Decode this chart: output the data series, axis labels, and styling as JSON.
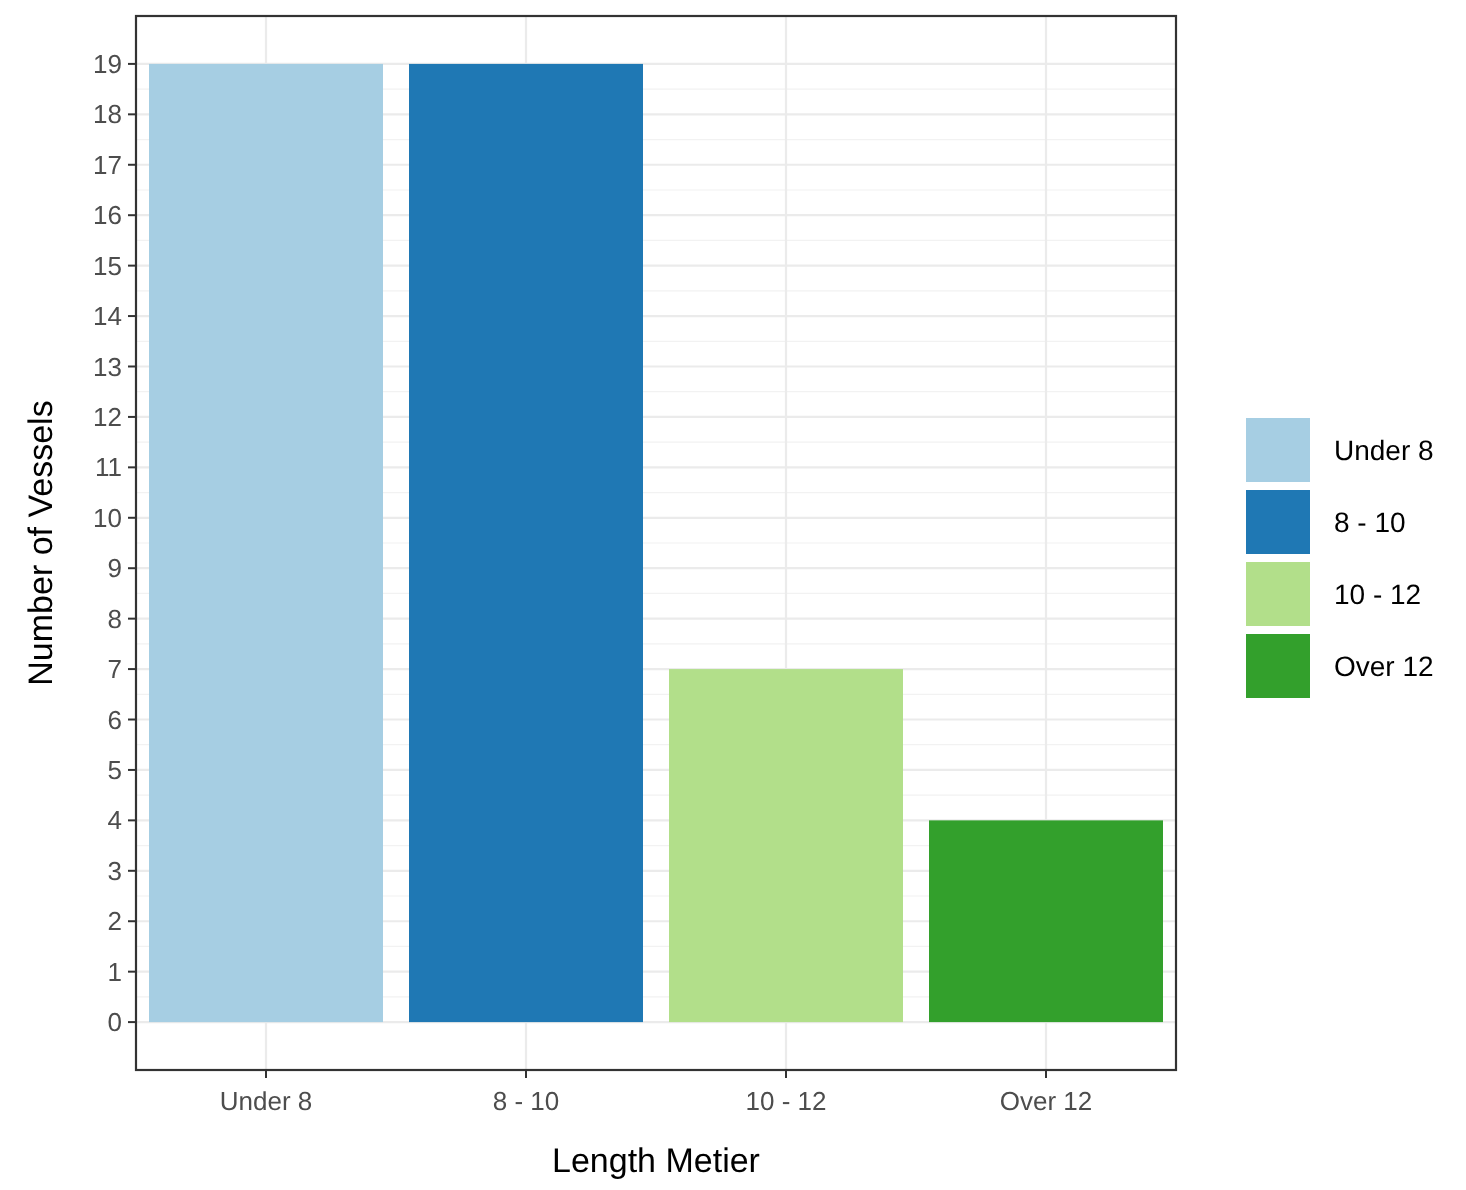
{
  "chart_data": {
    "type": "bar",
    "xlabel": "Length Metier",
    "ylabel": "Number of Vessels",
    "categories": [
      "Under 8",
      "8 - 10",
      "10 - 12",
      "Over 12"
    ],
    "stacked": true,
    "series": [
      {
        "name": "Under 8",
        "color": "#a6cee3",
        "values": [
          19,
          null,
          null,
          null
        ]
      },
      {
        "name": "8 - 10",
        "color": "#1f78b4",
        "values": [
          null,
          19,
          null,
          null
        ]
      },
      {
        "name": "10 - 12",
        "color": "#b2df8a",
        "values": [
          null,
          null,
          7,
          null
        ]
      },
      {
        "name": "Over 12",
        "color": "#33a02c",
        "values": [
          null,
          null,
          null,
          4
        ]
      }
    ],
    "ylim": [
      -0.95,
      19.95
    ],
    "yticks": [
      0,
      1,
      2,
      3,
      4,
      5,
      6,
      7,
      8,
      9,
      10,
      11,
      12,
      13,
      14,
      15,
      16,
      17,
      18,
      19
    ],
    "grid": true,
    "legend": "right"
  }
}
